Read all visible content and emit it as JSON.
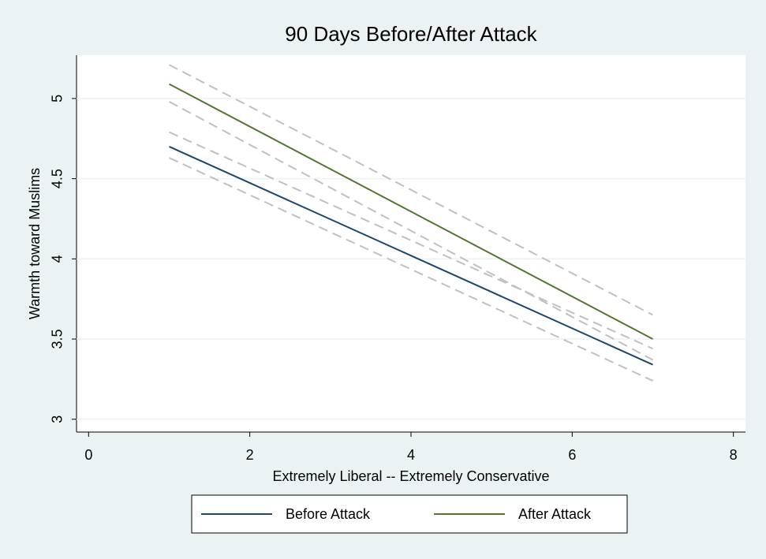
{
  "chart_data": {
    "type": "line",
    "title": "90 Days Before/After Attack",
    "x_label": "Extremely Liberal -- Extremely Conservative",
    "y_label": "Warmth toward Muslims",
    "xlim": [
      -0.15,
      8.15
    ],
    "ylim": [
      2.92,
      5.27
    ],
    "xticks": [
      0,
      2,
      4,
      6,
      8
    ],
    "yticks": [
      3,
      3.5,
      4,
      4.5,
      5
    ],
    "grid": true,
    "legend_position": "bottom",
    "ci_color": "#c0c0c0",
    "series": [
      {
        "name": "Before Attack",
        "color": "#1a476f",
        "x": [
          1,
          7
        ],
        "values": [
          4.7,
          3.34
        ],
        "ci_lower": [
          4.63,
          3.24
        ],
        "ci_upper": [
          4.79,
          3.44
        ]
      },
      {
        "name": "After Attack",
        "color": "#55752f",
        "x": [
          1,
          7
        ],
        "values": [
          5.09,
          3.5
        ],
        "ci_lower": [
          4.98,
          3.37
        ],
        "ci_upper": [
          5.21,
          3.65
        ]
      }
    ]
  }
}
